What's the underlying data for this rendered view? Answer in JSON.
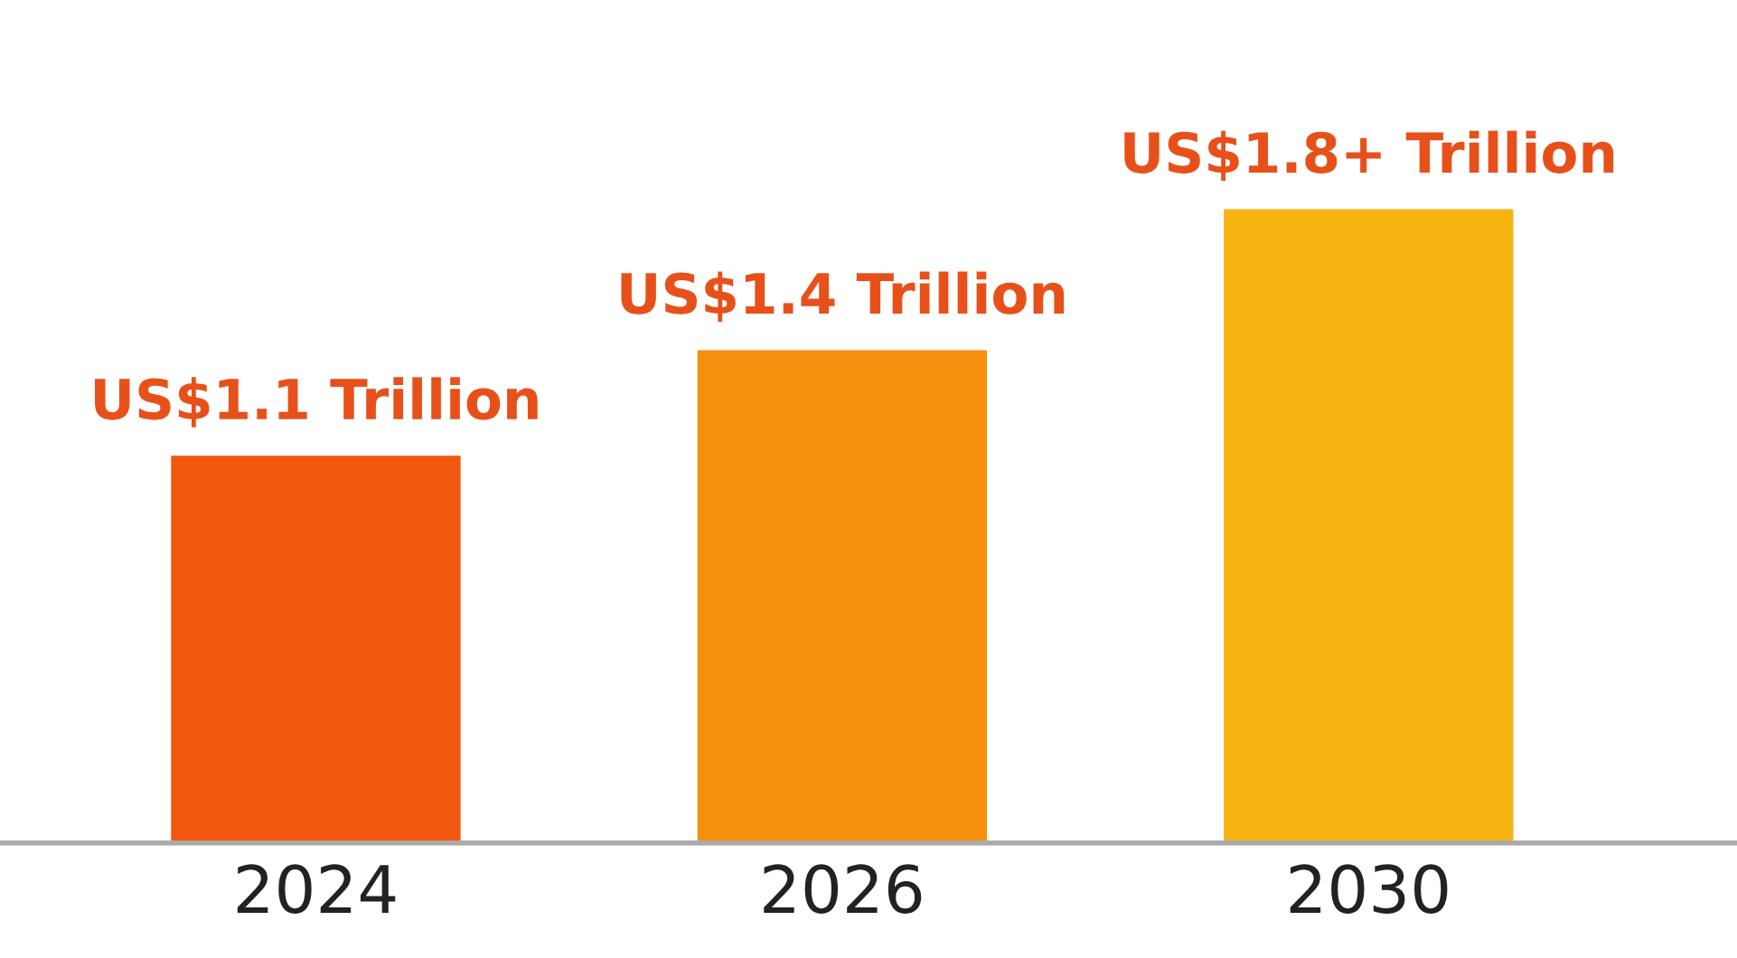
{
  "chart_data": {
    "type": "bar",
    "categories": [
      "2024",
      "2026",
      "2030"
    ],
    "values": [
      1.1,
      1.4,
      1.8
    ],
    "colors": [
      "#f0570f",
      "#f5900f",
      "#f7b312"
    ],
    "value_labels": [
      "US$1.1 Trillion",
      "US$1.4 Trillion",
      "US$1.8+ Trillion"
    ],
    "grid": false,
    "legend": false
  }
}
